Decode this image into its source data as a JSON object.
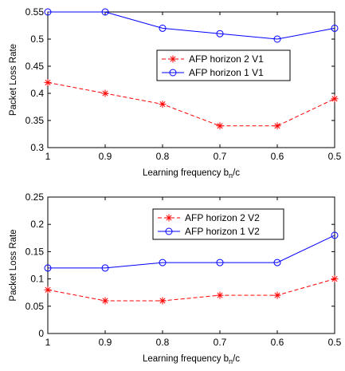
{
  "chart_data": [
    {
      "type": "line",
      "xlabel": "Learning frequency b_n/c",
      "ylabel": "Packet Loss Rate",
      "x": [
        1,
        0.9,
        0.8,
        0.7,
        0.6,
        0.5
      ],
      "xlim": [
        1,
        0.5
      ],
      "x_reversed": true,
      "ylim": [
        0.3,
        0.55
      ],
      "xticks": [
        "1",
        "0.9",
        "0.8",
        "0.7",
        "0.6",
        "0.5"
      ],
      "yticks": [
        "0.3",
        "0.35",
        "0.4",
        "0.45",
        "0.5",
        "0.55"
      ],
      "grid": false,
      "legend_position": "center-right",
      "series": [
        {
          "name": "AFP horizon 2 V1",
          "color": "#ff0000",
          "style": "dashed",
          "marker": "star",
          "values": [
            0.42,
            0.4,
            0.38,
            0.34,
            0.34,
            0.39
          ]
        },
        {
          "name": "AFP horizon 1 V1",
          "color": "#0000ff",
          "style": "solid",
          "marker": "circle",
          "values": [
            0.55,
            0.55,
            0.52,
            0.51,
            0.5,
            0.52
          ]
        }
      ]
    },
    {
      "type": "line",
      "xlabel": "Learning frequency b_n/c",
      "ylabel": "Packet Loss Rate",
      "x": [
        1,
        0.9,
        0.8,
        0.7,
        0.6,
        0.5
      ],
      "xlim": [
        1,
        0.5
      ],
      "x_reversed": true,
      "ylim": [
        0,
        0.25
      ],
      "xticks": [
        "1",
        "0.9",
        "0.8",
        "0.7",
        "0.6",
        "0.5"
      ],
      "yticks": [
        "0",
        "0.05",
        "0.1",
        "0.15",
        "0.2",
        "0.25"
      ],
      "grid": false,
      "legend_position": "top-center",
      "series": [
        {
          "name": "AFP horizon 2 V2",
          "color": "#ff0000",
          "style": "dashed",
          "marker": "star",
          "values": [
            0.08,
            0.06,
            0.06,
            0.07,
            0.07,
            0.1
          ]
        },
        {
          "name": "AFP horizon 1 V2",
          "color": "#0000ff",
          "style": "solid",
          "marker": "circle",
          "values": [
            0.12,
            0.12,
            0.13,
            0.13,
            0.13,
            0.18
          ]
        }
      ]
    }
  ]
}
